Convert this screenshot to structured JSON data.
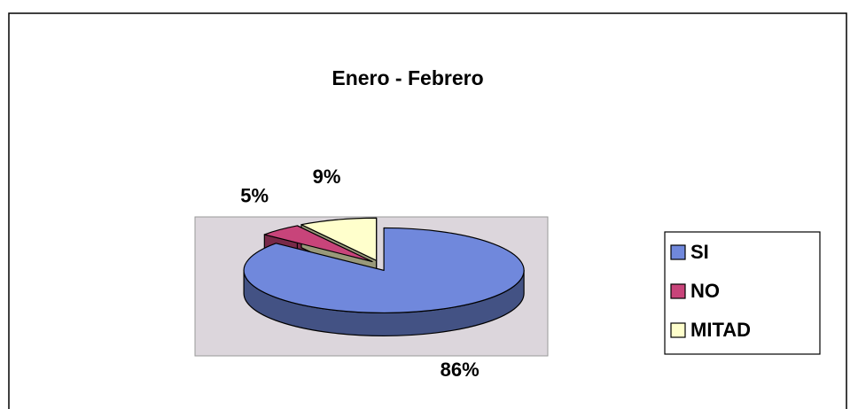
{
  "chart_data": {
    "type": "pie",
    "title": "Enero - Febrero",
    "categories": [
      "SI",
      "NO",
      "MITAD"
    ],
    "values": [
      86,
      5,
      9
    ],
    "value_labels": [
      "86%",
      "5%",
      "9%"
    ],
    "colors": [
      "#7088dc",
      "#c8447a",
      "#ffffcc"
    ],
    "legend": "right"
  }
}
